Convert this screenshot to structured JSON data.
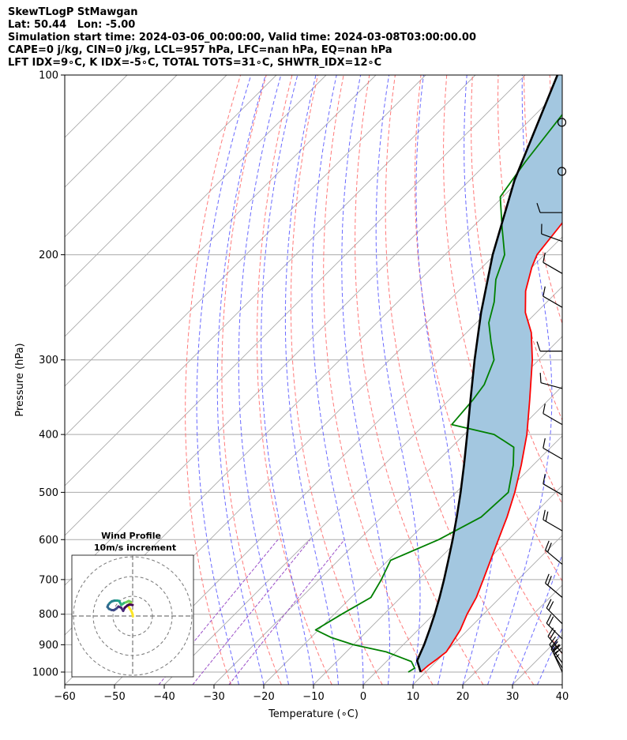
{
  "title": {
    "line1": "SkewTLogP StMawgan",
    "line2": "Lat: 50.44   Lon: -5.00",
    "line3": "Simulation start time: 2024-03-06_00:00:00, Valid time: 2024-03-08T03:00:00.00",
    "line4": "CAPE=0 j/kg, CIN=0 j/kg, LCL=957 hPa, LFC=nan hPa, EQ=nan hPa",
    "line5": "LFT IDX=9∘C, K IDX=-5∘C, TOTAL TOTS=31∘C, SHWTR_IDX=12∘C"
  },
  "colors": {
    "temperature": "#ff0000",
    "dewpoint": "#008000",
    "parcel": "#000000",
    "fill": "#a3c7e0",
    "dry_adiabat": "#ff6b6b",
    "moist_adiabat": "#5a5aff",
    "mixing_ratio": "#9b50c8",
    "isotherm": "#aaaaaa"
  },
  "chart_data": {
    "type": "line",
    "xlabel": "Temperature (∘C)",
    "ylabel": "Pressure (hPa)",
    "xlim": [
      -60,
      40
    ],
    "ylim": [
      1050,
      100
    ],
    "y_scale": "log",
    "x_ticks": [
      "−60",
      "−50",
      "−40",
      "−30",
      "−20",
      "−10",
      "0",
      "10",
      "20",
      "30",
      "40"
    ],
    "y_ticks": [
      "100",
      "200",
      "300",
      "400",
      "500",
      "600",
      "700",
      "800",
      "900",
      "1000"
    ],
    "grid": true,
    "skew": 45,
    "series": [
      {
        "key": "temperature",
        "points": [
          [
            1000,
            9.0
          ],
          [
            975,
            9.2
          ],
          [
            950,
            9.7
          ],
          [
            925,
            10.1
          ],
          [
            900,
            9.6
          ],
          [
            850,
            8.5
          ],
          [
            800,
            6.7
          ],
          [
            750,
            5.2
          ],
          [
            700,
            3.0
          ],
          [
            650,
            0.6
          ],
          [
            600,
            -2.0
          ],
          [
            550,
            -4.8
          ],
          [
            500,
            -8.2
          ],
          [
            450,
            -12.4
          ],
          [
            400,
            -17.4
          ],
          [
            350,
            -23.8
          ],
          [
            300,
            -31.3
          ],
          [
            270,
            -37.0
          ],
          [
            250,
            -42.2
          ],
          [
            230,
            -46.5
          ],
          [
            210,
            -50.0
          ],
          [
            200,
            -51.5
          ],
          [
            180,
            -52.6
          ],
          [
            160,
            -54.0
          ],
          [
            150,
            -55.3
          ],
          [
            135,
            -57.0
          ],
          [
            125,
            -58.6
          ],
          [
            115,
            -59.6
          ],
          [
            100,
            -62.3
          ]
        ]
      },
      {
        "key": "dewpoint",
        "points": [
          [
            1000,
            6.5
          ],
          [
            985,
            7.0
          ],
          [
            960,
            5.0
          ],
          [
            925,
            -2.0
          ],
          [
            900,
            -10.0
          ],
          [
            875,
            -16.0
          ],
          [
            850,
            -20.6
          ],
          [
            800,
            -18.5
          ],
          [
            750,
            -16.0
          ],
          [
            700,
            -17.5
          ],
          [
            650,
            -19.5
          ],
          [
            600,
            -14.0
          ],
          [
            550,
            -10.0
          ],
          [
            500,
            -9.5
          ],
          [
            450,
            -14.0
          ],
          [
            420,
            -17.5
          ],
          [
            400,
            -24.0
          ],
          [
            385,
            -34.5
          ],
          [
            350,
            -35.2
          ],
          [
            330,
            -36.0
          ],
          [
            300,
            -39.0
          ],
          [
            280,
            -43.2
          ],
          [
            260,
            -47.5
          ],
          [
            240,
            -50.6
          ],
          [
            220,
            -54.8
          ],
          [
            200,
            -58.0
          ],
          [
            180,
            -64.0
          ],
          [
            160,
            -70.5
          ],
          [
            140,
            -72.5
          ],
          [
            100,
            -76.3
          ]
        ]
      },
      {
        "key": "parcel",
        "points": [
          [
            1000,
            9.0
          ],
          [
            957,
            6.0
          ],
          [
            900,
            4.2
          ],
          [
            850,
            2.3
          ],
          [
            800,
            0.2
          ],
          [
            750,
            -2.2
          ],
          [
            700,
            -4.9
          ],
          [
            650,
            -7.9
          ],
          [
            600,
            -11.2
          ],
          [
            550,
            -14.9
          ],
          [
            500,
            -19.1
          ],
          [
            450,
            -23.9
          ],
          [
            400,
            -29.4
          ],
          [
            350,
            -35.7
          ],
          [
            300,
            -42.9
          ],
          [
            250,
            -51.1
          ],
          [
            200,
            -60.4
          ],
          [
            150,
            -71.0
          ],
          [
            100,
            -83.5
          ]
        ]
      }
    ],
    "wind_barbs": {
      "circle_levels": [
        120,
        145
      ],
      "levels": [
        {
          "p": 170,
          "speed": 10,
          "dir": 270
        },
        {
          "p": 190,
          "speed": 10,
          "dir": 290
        },
        {
          "p": 215,
          "speed": 10,
          "dir": 300
        },
        {
          "p": 245,
          "speed": 10,
          "dir": 300
        },
        {
          "p": 290,
          "speed": 10,
          "dir": 270
        },
        {
          "p": 335,
          "speed": 10,
          "dir": 285
        },
        {
          "p": 385,
          "speed": 10,
          "dir": 300
        },
        {
          "p": 440,
          "speed": 10,
          "dir": 300
        },
        {
          "p": 505,
          "speed": 10,
          "dir": 300
        },
        {
          "p": 580,
          "speed": 20,
          "dir": 300
        },
        {
          "p": 660,
          "speed": 20,
          "dir": 310
        },
        {
          "p": 750,
          "speed": 20,
          "dir": 310
        },
        {
          "p": 830,
          "speed": 20,
          "dir": 315
        },
        {
          "p": 880,
          "speed": 20,
          "dir": 315
        },
        {
          "p": 930,
          "speed": 20,
          "dir": 320
        },
        {
          "p": 965,
          "speed": 25,
          "dir": 325
        },
        {
          "p": 985,
          "speed": 25,
          "dir": 330
        },
        {
          "p": 1000,
          "speed": 25,
          "dir": 335
        }
      ]
    },
    "hodograph": {
      "title_line1": "Wind Profile",
      "title_line2": "10m/s increment",
      "ring_increment": 10,
      "rings": 3,
      "points": [
        [
          0.05,
          -0.1
        ],
        [
          0.0,
          0.4
        ],
        [
          -0.3,
          1.2
        ],
        [
          -0.8,
          2.0
        ],
        [
          -1.2,
          2.6
        ],
        [
          -0.9,
          3.0
        ],
        [
          -0.4,
          3.4
        ],
        [
          -0.5,
          3.6
        ],
        [
          -1.0,
          3.8
        ],
        [
          -1.6,
          3.5
        ],
        [
          -2.2,
          3.3
        ],
        [
          -2.6,
          3.0
        ],
        [
          -2.9,
          2.8
        ],
        [
          -3.2,
          3.4
        ],
        [
          -3.4,
          3.8
        ],
        [
          -3.9,
          3.9
        ],
        [
          -4.6,
          3.9
        ],
        [
          -5.3,
          3.7
        ],
        [
          -5.8,
          3.3
        ],
        [
          -6.2,
          2.8
        ],
        [
          -6.4,
          2.3
        ],
        [
          -6.0,
          1.8
        ],
        [
          -5.3,
          1.5
        ],
        [
          -4.7,
          1.5
        ],
        [
          -4.1,
          1.9
        ],
        [
          -3.6,
          2.4
        ],
        [
          -2.9,
          2.1
        ],
        [
          -2.4,
          1.3
        ],
        [
          -2.0,
          2.1
        ],
        [
          -1.3,
          2.7
        ],
        [
          -0.8,
          2.9
        ],
        [
          0.0,
          2.8
        ]
      ]
    }
  }
}
